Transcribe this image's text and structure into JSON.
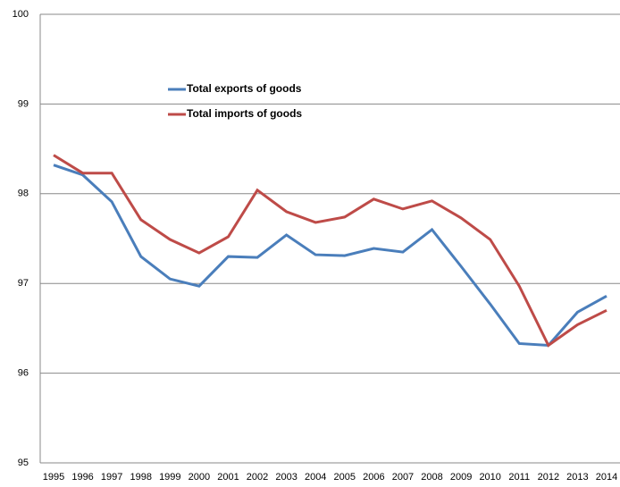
{
  "chart_data": {
    "type": "line",
    "categories": [
      "1995",
      "1996",
      "1997",
      "1998",
      "1999",
      "2000",
      "2001",
      "2002",
      "2003",
      "2004",
      "2005",
      "2006",
      "2007",
      "2008",
      "2009",
      "2010",
      "2011",
      "2012",
      "2013",
      "2014"
    ],
    "series": [
      {
        "name": "Total exports of goods",
        "color": "#4a7ebb",
        "values": [
          98.32,
          98.21,
          97.91,
          97.3,
          97.05,
          96.97,
          97.3,
          97.29,
          97.54,
          97.32,
          97.31,
          97.39,
          97.35,
          97.6,
          97.19,
          96.77,
          96.33,
          96.31,
          96.68,
          96.86
        ]
      },
      {
        "name": "Total imports of goods",
        "color": "#be4b48",
        "values": [
          98.43,
          98.23,
          98.23,
          97.71,
          97.49,
          97.34,
          97.52,
          98.04,
          97.8,
          97.68,
          97.74,
          97.94,
          97.83,
          97.92,
          97.73,
          97.49,
          96.97,
          96.31,
          96.54,
          96.7
        ]
      }
    ],
    "ylim": [
      95,
      100
    ],
    "yticks": [
      95,
      96,
      97,
      98,
      99,
      100
    ],
    "grid": true
  }
}
